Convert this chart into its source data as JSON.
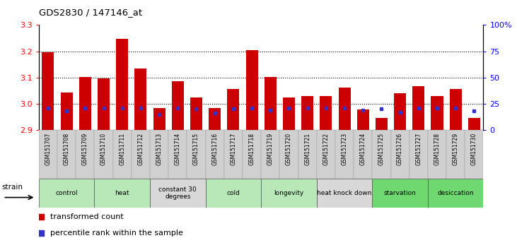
{
  "title": "GDS2830 / 147146_at",
  "samples": [
    "GSM151707",
    "GSM151708",
    "GSM151709",
    "GSM151710",
    "GSM151711",
    "GSM151712",
    "GSM151713",
    "GSM151714",
    "GSM151715",
    "GSM151716",
    "GSM151717",
    "GSM151718",
    "GSM151719",
    "GSM151720",
    "GSM151721",
    "GSM151722",
    "GSM151723",
    "GSM151724",
    "GSM151725",
    "GSM151726",
    "GSM151727",
    "GSM151728",
    "GSM151729",
    "GSM151730"
  ],
  "red_values": [
    3.197,
    3.042,
    3.103,
    3.097,
    3.248,
    3.133,
    2.983,
    3.085,
    3.025,
    2.983,
    3.055,
    3.205,
    3.103,
    3.025,
    3.03,
    3.03,
    3.062,
    2.977,
    2.947,
    3.04,
    3.068,
    3.03,
    3.055,
    2.945
  ],
  "blue_values": [
    0.21,
    0.18,
    0.21,
    0.21,
    0.21,
    0.21,
    0.15,
    0.21,
    0.2,
    0.16,
    0.2,
    0.21,
    0.19,
    0.21,
    0.21,
    0.21,
    0.21,
    0.19,
    0.2,
    0.17,
    0.21,
    0.21,
    0.21,
    0.18
  ],
  "groups": [
    {
      "label": "control",
      "start": 0,
      "end": 2,
      "color": "#b8e8b8"
    },
    {
      "label": "heat",
      "start": 3,
      "end": 5,
      "color": "#b8e8b8"
    },
    {
      "label": "constant 30\ndegrees",
      "start": 6,
      "end": 8,
      "color": "#d8d8d8"
    },
    {
      "label": "cold",
      "start": 9,
      "end": 11,
      "color": "#b8e8b8"
    },
    {
      "label": "longevity",
      "start": 12,
      "end": 14,
      "color": "#b8e8b8"
    },
    {
      "label": "heat knock down",
      "start": 15,
      "end": 17,
      "color": "#d8d8d8"
    },
    {
      "label": "starvation",
      "start": 18,
      "end": 20,
      "color": "#70d870"
    },
    {
      "label": "desiccation",
      "start": 21,
      "end": 23,
      "color": "#70d870"
    }
  ],
  "ylim": [
    2.9,
    3.3
  ],
  "y_ticks": [
    2.9,
    3.0,
    3.1,
    3.2,
    3.3
  ],
  "right_yticks": [
    0,
    25,
    50,
    75,
    100
  ],
  "bar_color": "#cc0000",
  "blue_color": "#3333cc",
  "bar_bottom": 2.9
}
